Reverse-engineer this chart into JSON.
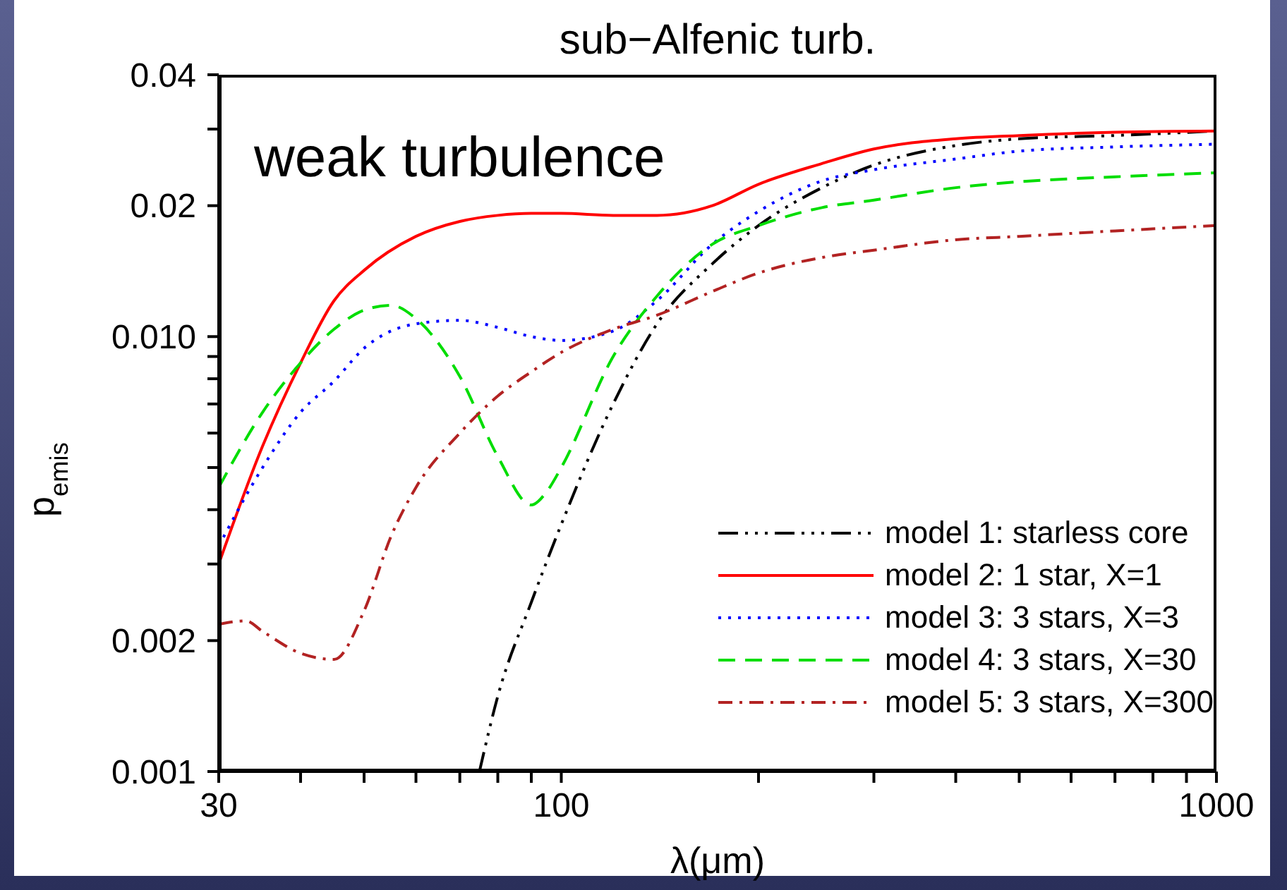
{
  "chart_data": {
    "type": "line",
    "title": "sub−Alfenic turb.",
    "xlabel": "λ(μm)",
    "ylabel": "p$_{emis}$",
    "annotations": [
      "weak turbulence"
    ],
    "log": "xy",
    "grid": false,
    "legend": "bottom right",
    "marker": "none",
    "xlim": [
      30,
      1000
    ],
    "xticks": [
      30,
      {
        "value": 40,
        "label": null
      },
      {
        "value": 50,
        "label": null
      },
      {
        "value": 60,
        "label": null
      },
      {
        "value": 70,
        "label": null
      },
      {
        "value": 80,
        "label": null
      },
      {
        "value": 90,
        "label": null
      },
      100,
      {
        "value": 200,
        "label": null
      },
      {
        "value": 300,
        "label": null
      },
      {
        "value": 400,
        "label": null
      },
      {
        "value": 500,
        "label": null
      },
      {
        "value": 600,
        "label": null
      },
      {
        "value": 700,
        "label": null
      },
      {
        "value": 800,
        "label": null
      },
      {
        "value": 900,
        "label": null
      },
      1000
    ],
    "ylim": [
      0.001,
      0.04
    ],
    "yticks": [
      0.001,
      0.002,
      {
        "value": 0.003,
        "label": null
      },
      {
        "value": 0.004,
        "label": null
      },
      {
        "value": 0.005,
        "label": null
      },
      {
        "value": 0.006,
        "label": null
      },
      {
        "value": 0.007,
        "label": null
      },
      {
        "value": 0.008,
        "label": null
      },
      {
        "value": 0.009,
        "label": null
      },
      {
        "value": 0.01,
        "label": "0.010"
      },
      0.02,
      {
        "value": 0.03,
        "label": null
      },
      0.04
    ],
    "series": [
      {
        "name": "model 1: starless core",
        "color": "#000000",
        "line_style": "dashdotdotdot",
        "x": [
          75,
          80,
          90,
          100,
          120,
          140,
          170,
          200,
          250,
          300,
          400,
          500,
          700,
          1000
        ],
        "values": [
          0.001,
          0.00149,
          0.00245,
          0.0037,
          0.007,
          0.0107,
          0.0147,
          0.018,
          0.022,
          0.0248,
          0.0275,
          0.0285,
          0.029,
          0.0297
        ]
      },
      {
        "name": "model 2: 1 star, X=1",
        "color": "#ff0000",
        "line_style": "solid",
        "x": [
          30,
          35,
          40,
          45,
          50,
          60,
          70,
          80,
          90,
          100,
          120,
          140,
          170,
          200,
          250,
          300,
          400,
          500,
          700,
          1000
        ],
        "values": [
          0.003,
          0.0056,
          0.0087,
          0.0121,
          0.0142,
          0.017,
          0.0184,
          0.019,
          0.0192,
          0.0192,
          0.019,
          0.019,
          0.02,
          0.0224,
          0.025,
          0.027,
          0.0285,
          0.029,
          0.0295,
          0.0297
        ]
      },
      {
        "name": "model 3: 3 stars, X=3",
        "color": "#0000ff",
        "line_style": "dotted",
        "x": [
          30,
          35,
          40,
          45,
          50,
          60,
          70,
          80,
          90,
          100,
          120,
          140,
          170,
          200,
          250,
          300,
          400,
          500,
          700,
          1000
        ],
        "values": [
          0.0033,
          0.005,
          0.0067,
          0.0079,
          0.0094,
          0.0107,
          0.0109,
          0.0105,
          0.01,
          0.0098,
          0.0103,
          0.0121,
          0.0163,
          0.0194,
          0.0228,
          0.0242,
          0.0256,
          0.0267,
          0.0273,
          0.0277
        ]
      },
      {
        "name": "model 4: 3 stars, X=30",
        "color": "#00dd00",
        "line_style": "dashed",
        "x": [
          30,
          35,
          40,
          45,
          50,
          55,
          60,
          70,
          80,
          90,
          95,
          100,
          120,
          140,
          170,
          200,
          250,
          300,
          400,
          500,
          700,
          1000
        ],
        "values": [
          0.0045,
          0.0067,
          0.0087,
          0.0104,
          0.0115,
          0.0118,
          0.011,
          0.0081,
          0.0053,
          0.0041,
          0.0044,
          0.005,
          0.009,
          0.0124,
          0.0163,
          0.018,
          0.0198,
          0.0206,
          0.022,
          0.0227,
          0.0233,
          0.0238
        ]
      },
      {
        "name": "model 5: 3 stars, X=300",
        "color": "#b22222",
        "line_style": "dashdot",
        "x": [
          30,
          33,
          35,
          40,
          45,
          50,
          55,
          60,
          70,
          80,
          90,
          100,
          120,
          140,
          170,
          200,
          250,
          300,
          400,
          500,
          700,
          1000
        ],
        "values": [
          0.00218,
          0.00222,
          0.0021,
          0.00187,
          0.00181,
          0.00234,
          0.00348,
          0.0045,
          0.006,
          0.0073,
          0.0083,
          0.0092,
          0.0104,
          0.0112,
          0.0127,
          0.014,
          0.0152,
          0.0158,
          0.0167,
          0.017,
          0.0175,
          0.018
        ]
      }
    ]
  }
}
